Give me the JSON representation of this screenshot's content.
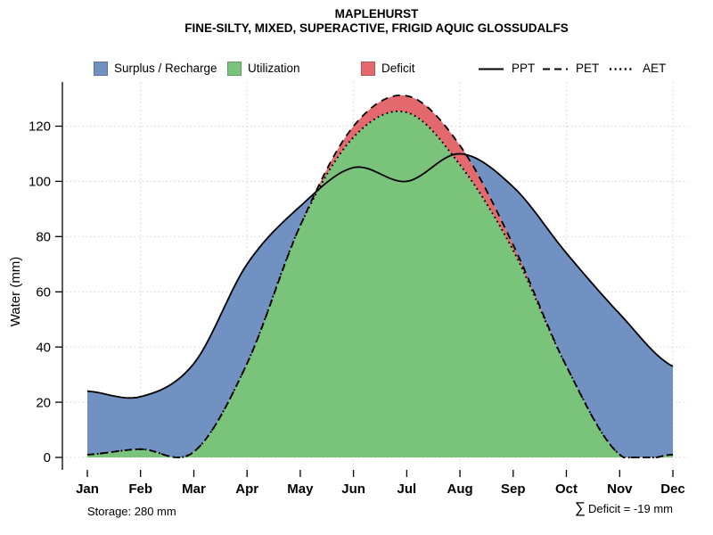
{
  "title": "MAPLEHURST",
  "subtitle": "FINE-SILTY, MIXED, SUPERACTIVE, FRIGID AQUIC GLOSSUDALFS",
  "legend": {
    "fills": [
      {
        "label": "Surplus / Recharge",
        "color": "#7191C3"
      },
      {
        "label": "Utilization",
        "color": "#79C37B"
      },
      {
        "label": "Deficit",
        "color": "#E4696E"
      }
    ],
    "lines": [
      {
        "label": "PPT",
        "style": "solid"
      },
      {
        "label": "PET",
        "style": "dashed"
      },
      {
        "label": "AET",
        "style": "dotted"
      }
    ]
  },
  "chart_data": {
    "type": "area",
    "title": "MAPLEHURST",
    "subtitle": "FINE-SILTY, MIXED, SUPERACTIVE, FRIGID AQUIC GLOSSUDALFS",
    "x": [
      "Jan",
      "Feb",
      "Mar",
      "Apr",
      "May",
      "Jun",
      "Jul",
      "Aug",
      "Sep",
      "Oct",
      "Nov",
      "Dec"
    ],
    "xlabel": "",
    "ylabel": "Water (mm)",
    "yticks": [
      0,
      20,
      40,
      60,
      80,
      100,
      120
    ],
    "ylim": [
      0,
      136
    ],
    "grid": "dotted light-gray; horizontal every 20 mm, vertical at every 2nd month",
    "smoothing": "monthly values drawn as spline-smoothed curves",
    "series": [
      {
        "name": "PPT",
        "line": "solid",
        "values": [
          24,
          22,
          34,
          70,
          91,
          105,
          100,
          110,
          98,
          74,
          52,
          33
        ]
      },
      {
        "name": "PET",
        "line": "dashed",
        "values": [
          1,
          3,
          2,
          34,
          84,
          120,
          131,
          113,
          77,
          33,
          1,
          1
        ]
      },
      {
        "name": "AET",
        "line": "dotted",
        "values": [
          1,
          3,
          2,
          34,
          84,
          116,
          125,
          106,
          75,
          33,
          1,
          1
        ]
      }
    ],
    "regions": [
      {
        "name": "Surplus / Recharge",
        "rule": "between PPT and PET where PPT > PET",
        "color": "#7191C3"
      },
      {
        "name": "Utilization",
        "rule": "area under AET",
        "color": "#79C37B"
      },
      {
        "name": "Deficit",
        "rule": "between PET and AET where PET > AET",
        "color": "#E4696E"
      }
    ]
  },
  "footer": {
    "storage": "Storage: 280 mm",
    "deficit_sigma": "∑",
    "deficit_text": "Deficit = -19 mm"
  }
}
